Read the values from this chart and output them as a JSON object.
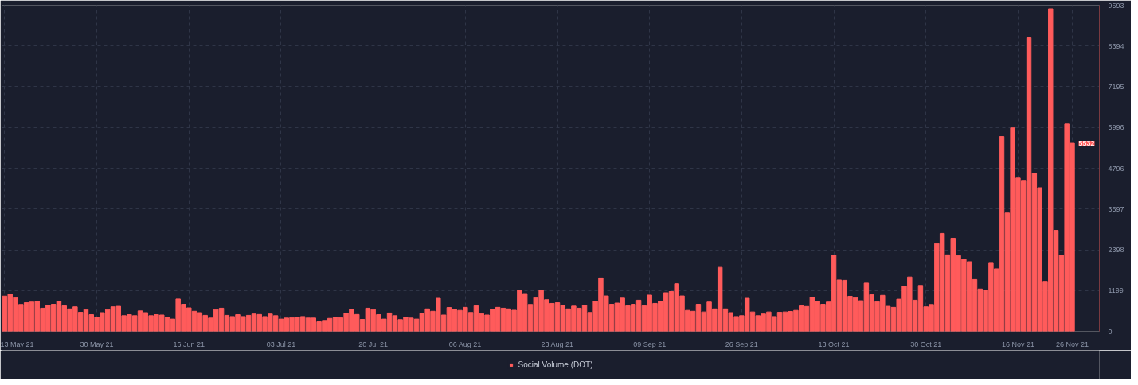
{
  "chart_data": {
    "type": "bar",
    "x": [
      "2021-05-13",
      "2021-05-14",
      "2021-05-15",
      "2021-05-16",
      "2021-05-17",
      "2021-05-18",
      "2021-05-19",
      "2021-05-20",
      "2021-05-21",
      "2021-05-22",
      "2021-05-23",
      "2021-05-24",
      "2021-05-25",
      "2021-05-26",
      "2021-05-27",
      "2021-05-28",
      "2021-05-29",
      "2021-05-30",
      "2021-05-31",
      "2021-06-01",
      "2021-06-02",
      "2021-06-03",
      "2021-06-04",
      "2021-06-05",
      "2021-06-06",
      "2021-06-07",
      "2021-06-08",
      "2021-06-09",
      "2021-06-10",
      "2021-06-11",
      "2021-06-12",
      "2021-06-13",
      "2021-06-14",
      "2021-06-15",
      "2021-06-16",
      "2021-06-17",
      "2021-06-18",
      "2021-06-19",
      "2021-06-20",
      "2021-06-21",
      "2021-06-22",
      "2021-06-23",
      "2021-06-24",
      "2021-06-25",
      "2021-06-26",
      "2021-06-27",
      "2021-06-28",
      "2021-06-29",
      "2021-06-30",
      "2021-07-01",
      "2021-07-02",
      "2021-07-03",
      "2021-07-04",
      "2021-07-05",
      "2021-07-06",
      "2021-07-07",
      "2021-07-08",
      "2021-07-09",
      "2021-07-10",
      "2021-07-11",
      "2021-07-12",
      "2021-07-13",
      "2021-07-14",
      "2021-07-15",
      "2021-07-16",
      "2021-07-17",
      "2021-07-18",
      "2021-07-19",
      "2021-07-20",
      "2021-07-21",
      "2021-07-22",
      "2021-07-23",
      "2021-07-24",
      "2021-07-25",
      "2021-07-26",
      "2021-07-27",
      "2021-07-28",
      "2021-07-29",
      "2021-07-30",
      "2021-07-31",
      "2021-08-01",
      "2021-08-02",
      "2021-08-03",
      "2021-08-04",
      "2021-08-05",
      "2021-08-06",
      "2021-08-07",
      "2021-08-08",
      "2021-08-09",
      "2021-08-10",
      "2021-08-11",
      "2021-08-12",
      "2021-08-13",
      "2021-08-14",
      "2021-08-15",
      "2021-08-16",
      "2021-08-17",
      "2021-08-18",
      "2021-08-19",
      "2021-08-20",
      "2021-08-21",
      "2021-08-22",
      "2021-08-23",
      "2021-08-24",
      "2021-08-25",
      "2021-08-26",
      "2021-08-27",
      "2021-08-28",
      "2021-08-29",
      "2021-08-30",
      "2021-08-31",
      "2021-09-01",
      "2021-09-02",
      "2021-09-03",
      "2021-09-04",
      "2021-09-05",
      "2021-09-06",
      "2021-09-07",
      "2021-09-08",
      "2021-09-09",
      "2021-09-10",
      "2021-09-11",
      "2021-09-12",
      "2021-09-13",
      "2021-09-14",
      "2021-09-15",
      "2021-09-16",
      "2021-09-17",
      "2021-09-18",
      "2021-09-19",
      "2021-09-20",
      "2021-09-21",
      "2021-09-22",
      "2021-09-23",
      "2021-09-24",
      "2021-09-25",
      "2021-09-26",
      "2021-09-27",
      "2021-09-28",
      "2021-09-29",
      "2021-09-30",
      "2021-10-01",
      "2021-10-02",
      "2021-10-03",
      "2021-10-04",
      "2021-10-05",
      "2021-10-06",
      "2021-10-07",
      "2021-10-08",
      "2021-10-09",
      "2021-10-10",
      "2021-10-11",
      "2021-10-12",
      "2021-10-13",
      "2021-10-14",
      "2021-10-15",
      "2021-10-16",
      "2021-10-17",
      "2021-10-18",
      "2021-10-19",
      "2021-10-20",
      "2021-10-21",
      "2021-10-22",
      "2021-10-23",
      "2021-10-24",
      "2021-10-25",
      "2021-10-26",
      "2021-10-27",
      "2021-10-28",
      "2021-10-29",
      "2021-10-30",
      "2021-10-31",
      "2021-11-01",
      "2021-11-02",
      "2021-11-03",
      "2021-11-04",
      "2021-11-05",
      "2021-11-06",
      "2021-11-07",
      "2021-11-08",
      "2021-11-09",
      "2021-11-10",
      "2021-11-11",
      "2021-11-12",
      "2021-11-13",
      "2021-11-14",
      "2021-11-15",
      "2021-11-16",
      "2021-11-17",
      "2021-11-18",
      "2021-11-19",
      "2021-11-20",
      "2021-11-21",
      "2021-11-22",
      "2021-11-23",
      "2021-11-24",
      "2021-11-25",
      "2021-11-26"
    ],
    "series": [
      {
        "name": "Social Volume (DOT)",
        "color": "#ff5b5b",
        "values": [
          1035,
          1100,
          990,
          790,
          840,
          860,
          880,
          680,
          770,
          795,
          885,
          750,
          660,
          720,
          560,
          640,
          490,
          410,
          550,
          640,
          720,
          735,
          460,
          490,
          460,
          600,
          550,
          460,
          490,
          480,
          410,
          360,
          950,
          795,
          690,
          590,
          550,
          470,
          390,
          640,
          680,
          470,
          435,
          490,
          435,
          470,
          510,
          495,
          435,
          510,
          460,
          360,
          390,
          405,
          410,
          435,
          390,
          390,
          280,
          320,
          380,
          410,
          400,
          525,
          650,
          495,
          350,
          680,
          640,
          490,
          360,
          540,
          460,
          345,
          410,
          390,
          360,
          525,
          660,
          590,
          970,
          480,
          700,
          650,
          615,
          705,
          555,
          750,
          520,
          480,
          645,
          705,
          680,
          660,
          620,
          1210,
          1110,
          790,
          990,
          1215,
          930,
          820,
          840,
          765,
          660,
          740,
          680,
          770,
          555,
          885,
          1570,
          1040,
          795,
          830,
          975,
          750,
          795,
          915,
          750,
          1065,
          820,
          880,
          1135,
          1170,
          1400,
          1040,
          615,
          590,
          795,
          570,
          860,
          660,
          1880,
          660,
          550,
          435,
          460,
          970,
          570,
          460,
          510,
          570,
          435,
          560,
          570,
          585,
          615,
          750,
          730,
          1000,
          885,
          795,
          860,
          2235,
          1510,
          1500,
          1030,
          990,
          900,
          1418,
          1080,
          870,
          1058,
          735,
          705,
          945,
          1320,
          1598,
          915,
          1350,
          720,
          788,
          2580,
          2880,
          2250,
          2738,
          2228,
          2115,
          2048,
          1523,
          1245,
          1215,
          2003,
          1838,
          5730,
          3480,
          5985,
          4508,
          4440,
          8633,
          4643,
          4223,
          1470,
          9488,
          2970,
          2243,
          6098,
          5532
        ]
      }
    ],
    "xlim": [
      "2021-05-12T12:00",
      "2021-12-01"
    ],
    "xticks": [
      {
        "value": "2021-05-13",
        "label": "13 May 21"
      },
      {
        "value": "2021-05-30",
        "label": "30 May 21"
      },
      {
        "value": "2021-06-16",
        "label": "16 Jun 21"
      },
      {
        "value": "2021-07-03",
        "label": "03 Jul 21"
      },
      {
        "value": "2021-07-20",
        "label": "20 Jul 21"
      },
      {
        "value": "2021-08-06",
        "label": "06 Aug 21"
      },
      {
        "value": "2021-08-23",
        "label": "23 Aug 21"
      },
      {
        "value": "2021-09-09",
        "label": "09 Sep 21"
      },
      {
        "value": "2021-09-26",
        "label": "26 Sep 21"
      },
      {
        "value": "2021-10-13",
        "label": "13 Oct 21"
      },
      {
        "value": "2021-10-30",
        "label": "30 Oct 21"
      },
      {
        "value": "2021-11-16",
        "label": "16 Nov 21"
      },
      {
        "value": "2021-11-26",
        "label": "26 Nov 21"
      }
    ],
    "ylim": [
      0,
      9593
    ],
    "yticks": [
      0,
      1199,
      2398,
      3597,
      4796,
      5996,
      7195,
      8394,
      9593
    ],
    "annotations": [
      {
        "text": "5532",
        "x": "2021-11-26",
        "y": 5532
      }
    ],
    "grid": true,
    "legend": "bottom"
  }
}
